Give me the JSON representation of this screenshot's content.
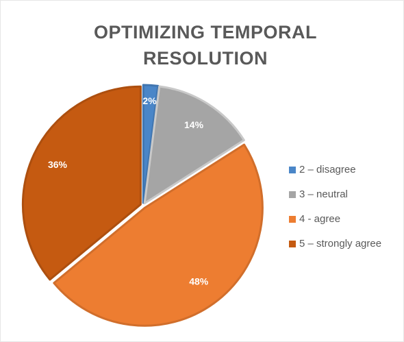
{
  "chart_data": {
    "type": "pie",
    "title": "OPTIMIZING TEMPORAL RESOLUTION",
    "categories": [
      "2 – disagree",
      "3 – neutral",
      "4 - agree",
      "5 – strongly agree"
    ],
    "values": [
      2,
      14,
      48,
      36
    ],
    "value_labels": [
      "2%",
      "14%",
      "48%",
      "36%"
    ],
    "colors": [
      "#4a86c8",
      "#a5a5a5",
      "#ed7d31",
      "#c55a11"
    ],
    "legend": "right"
  }
}
